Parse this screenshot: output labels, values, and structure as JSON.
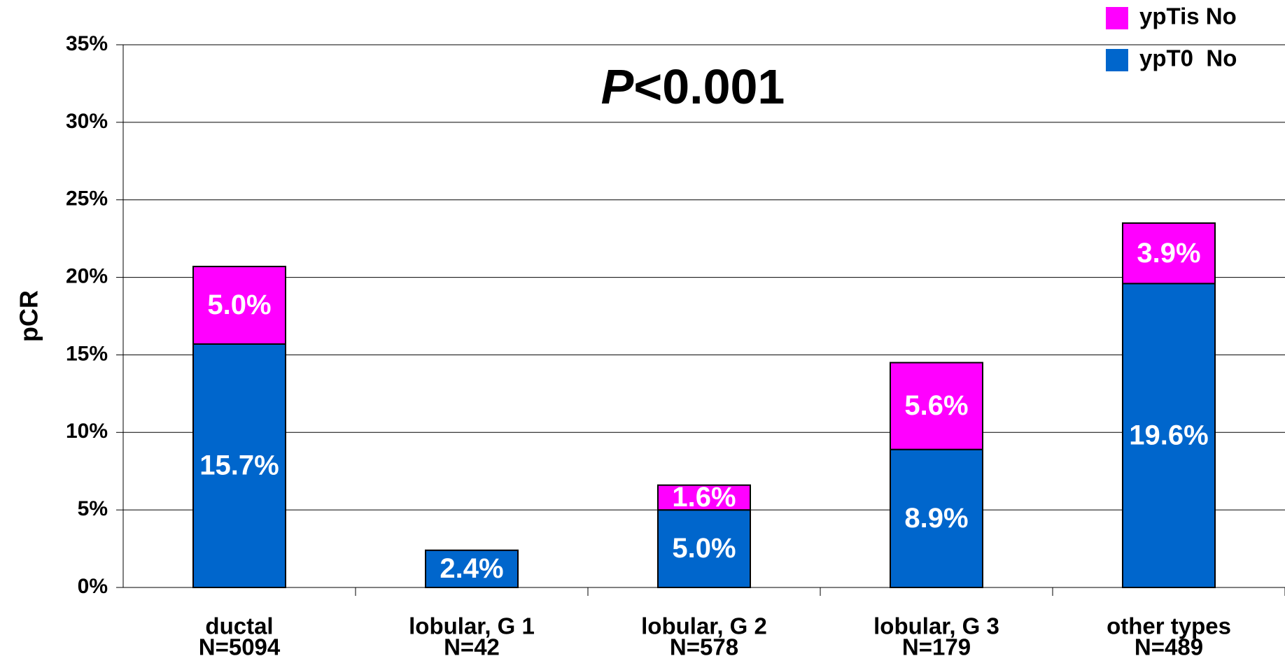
{
  "chart_data": {
    "type": "stacked_bar",
    "annotation": {
      "italic": "P",
      "rest": "<0.001"
    },
    "y_label": "pCR",
    "categories": [
      "ductal",
      "lobular, G 1",
      "lobular, G 2",
      "lobular, G 3",
      "other types"
    ],
    "category_n": [
      "N=5094",
      "N=42",
      "N=578",
      "N=179",
      "N=489"
    ],
    "series": [
      {
        "name": "ypT0  No",
        "color": "#0066cc",
        "values": [
          15.7,
          2.4,
          5.0,
          8.9,
          19.6
        ],
        "value_labels": [
          "15.7%",
          "2.4%",
          "5.0%",
          "8.9%",
          "19.6%"
        ]
      },
      {
        "name": "ypTis No",
        "color": "#ff00ff",
        "values": [
          5.0,
          null,
          1.6,
          5.6,
          3.9
        ],
        "value_labels": [
          "5.0%",
          null,
          "1.6%",
          "5.6%",
          "3.9%"
        ]
      }
    ],
    "ylim": [
      0,
      35
    ],
    "yticks": [
      {
        "value": 0,
        "label": "0%"
      },
      {
        "value": 5,
        "label": "5%"
      },
      {
        "value": 10,
        "label": "10%"
      },
      {
        "value": 15,
        "label": "15%"
      },
      {
        "value": 20,
        "label": "20%"
      },
      {
        "value": 25,
        "label": "25%"
      },
      {
        "value": 30,
        "label": "30%"
      },
      {
        "value": 35,
        "label": "35%"
      }
    ],
    "grid": true
  }
}
